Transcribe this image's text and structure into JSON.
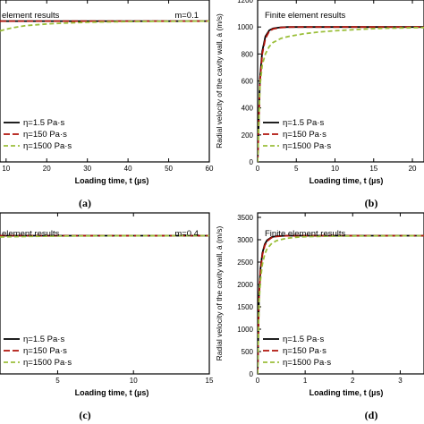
{
  "chart_data": [
    {
      "panel_label": "(a)",
      "annotation": "element results",
      "param_label": "m=0.1",
      "xlabel": "Loading time, t (µs)",
      "ylabel": "",
      "xlim": [
        8.5,
        60
      ],
      "ylim": [
        0,
        1150
      ],
      "xticks": [
        10,
        20,
        30,
        40,
        50,
        60
      ],
      "yticks": [],
      "legend": [
        "η=1.5 Pa·s",
        "η=150 Pa·s",
        "η=1500 Pa·s"
      ],
      "series": [
        {
          "name": "η=1.5 Pa·s",
          "color": "#000000",
          "dash": "",
          "x": [
            8.5,
            20,
            40,
            60
          ],
          "y": [
            1000,
            1000,
            1000,
            1000
          ]
        },
        {
          "name": "η=150 Pa·s",
          "color": "#b0140c",
          "dash": "7,3",
          "x": [
            8.5,
            20,
            40,
            60
          ],
          "y": [
            1000,
            1000,
            1000,
            1000
          ]
        },
        {
          "name": "η=1500 Pa·s",
          "color": "#9bbf3a",
          "dash": "5,3",
          "x": [
            8.5,
            10,
            12,
            15,
            20,
            25,
            30,
            40,
            50,
            60
          ],
          "y": [
            930,
            942,
            955,
            968,
            980,
            987,
            992,
            997,
            999,
            1000
          ]
        }
      ]
    },
    {
      "panel_label": "(b)",
      "annotation": "Finite element results",
      "param_label": "",
      "xlabel": "Loading time, t (µs)",
      "ylabel": "Radial velocity of the cavity wall, ȧ (m/s)",
      "xlim": [
        0,
        21.5
      ],
      "ylim": [
        0,
        1200
      ],
      "xticks": [
        0,
        5,
        10,
        15,
        20
      ],
      "yticks": [
        0,
        200,
        400,
        600,
        800,
        1000,
        1200
      ],
      "legend": [
        "η=1.5 Pa·s",
        "η=150 Pa·s",
        "η=1500 Pa·s"
      ],
      "series": [
        {
          "name": "η=1.5 Pa·s",
          "color": "#000000",
          "dash": "",
          "x": [
            0,
            0.3,
            0.6,
            1,
            1.5,
            2,
            3,
            4,
            6,
            21.5
          ],
          "y": [
            0,
            620,
            820,
            930,
            975,
            990,
            998,
            1000,
            1000,
            1000
          ]
        },
        {
          "name": "η=150 Pa·s",
          "color": "#b0140c",
          "dash": "7,3",
          "x": [
            0,
            0.3,
            0.6,
            1,
            1.5,
            2,
            3,
            4,
            6,
            21.5
          ],
          "y": [
            0,
            590,
            800,
            915,
            968,
            985,
            996,
            999,
            1000,
            1000
          ]
        },
        {
          "name": "η=1500 Pa·s",
          "color": "#9bbf3a",
          "dash": "5,3",
          "x": [
            0,
            0.3,
            0.6,
            1,
            1.5,
            2,
            3,
            4,
            6,
            8,
            10,
            13,
            16,
            21.5
          ],
          "y": [
            0,
            560,
            720,
            800,
            855,
            885,
            915,
            930,
            950,
            963,
            972,
            982,
            990,
            996
          ]
        }
      ]
    },
    {
      "panel_label": "(c)",
      "annotation": "element results",
      "param_label": "m=0.4",
      "xlabel": "Loading time, t (µs)",
      "ylabel": "",
      "xlim": [
        1.2,
        15
      ],
      "ylim": [
        0,
        3600
      ],
      "xticks": [
        5,
        10,
        15
      ],
      "yticks": [],
      "legend": [
        "η=1.5 Pa·s",
        "η=150 Pa·s",
        "η=1500 Pa·s"
      ],
      "series": [
        {
          "name": "η=1.5 Pa·s",
          "color": "#000000",
          "dash": "",
          "x": [
            1.2,
            5,
            10,
            15
          ],
          "y": [
            3090,
            3090,
            3090,
            3090
          ]
        },
        {
          "name": "η=150 Pa·s",
          "color": "#b0140c",
          "dash": "7,3",
          "x": [
            1.2,
            5,
            10,
            15
          ],
          "y": [
            3090,
            3090,
            3090,
            3090
          ]
        },
        {
          "name": "η=1500 Pa·s",
          "color": "#9bbf3a",
          "dash": "5,3",
          "x": [
            1.2,
            2,
            3,
            5,
            8,
            15
          ],
          "y": [
            3060,
            3068,
            3075,
            3082,
            3087,
            3090
          ]
        }
      ]
    },
    {
      "panel_label": "(d)",
      "annotation": "Finite element results",
      "param_label": "",
      "xlabel": "Loading time, t (µs)",
      "ylabel": "Radial velocity of the cavity wall, ȧ (m/s)",
      "xlim": [
        0,
        3.5
      ],
      "ylim": [
        0,
        3600
      ],
      "xticks": [
        0,
        1,
        2,
        3
      ],
      "yticks": [
        0,
        500,
        1000,
        1500,
        2000,
        2500,
        3000,
        3500
      ],
      "legend": [
        "η=1.5 Pa·s",
        "η=150 Pa·s",
        "η=1500 Pa·s"
      ],
      "series": [
        {
          "name": "η=1.5 Pa·s",
          "color": "#000000",
          "dash": "",
          "x": [
            0,
            0.03,
            0.06,
            0.1,
            0.15,
            0.2,
            0.3,
            0.4,
            0.6,
            1,
            3.5
          ],
          "y": [
            0,
            1800,
            2350,
            2700,
            2900,
            2990,
            3060,
            3080,
            3090,
            3090,
            3090
          ]
        },
        {
          "name": "η=150 Pa·s",
          "color": "#b0140c",
          "dash": "7,3",
          "x": [
            0,
            0.03,
            0.06,
            0.1,
            0.15,
            0.2,
            0.3,
            0.4,
            0.6,
            1,
            3.5
          ],
          "y": [
            0,
            1750,
            2300,
            2660,
            2870,
            2970,
            3050,
            3075,
            3088,
            3090,
            3090
          ]
        },
        {
          "name": "η=1500 Pa·s",
          "color": "#9bbf3a",
          "dash": "5,3",
          "x": [
            0,
            0.03,
            0.06,
            0.1,
            0.15,
            0.2,
            0.3,
            0.4,
            0.6,
            0.8,
            1,
            1.5,
            2,
            3.5
          ],
          "y": [
            0,
            1600,
            2100,
            2450,
            2680,
            2800,
            2920,
            2980,
            3030,
            3055,
            3068,
            3080,
            3085,
            3090
          ]
        }
      ]
    }
  ]
}
